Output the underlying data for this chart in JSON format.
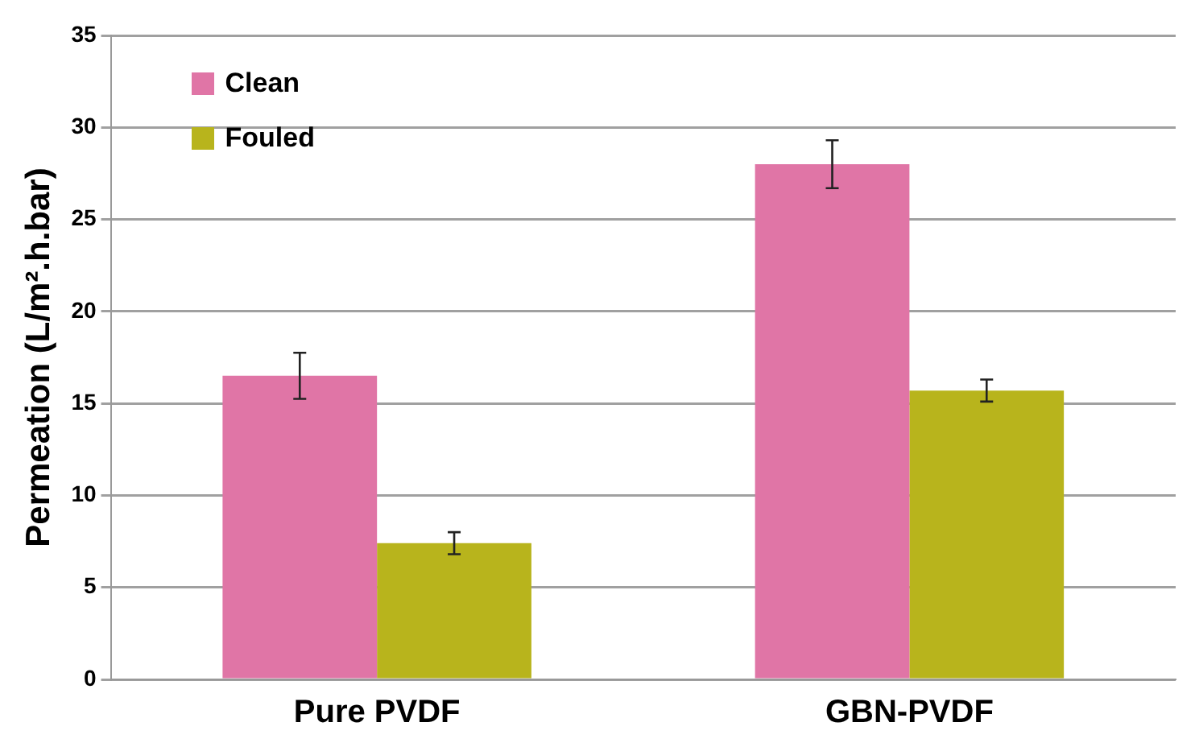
{
  "chart_data": {
    "type": "bar",
    "ylabel": "Permeation (L/m².h.bar)",
    "categories": [
      "Pure PVDF",
      "GBN-PVDF"
    ],
    "series": [
      {
        "name": "Clean",
        "color": "#e075a6",
        "values": [
          16.5,
          28.0
        ],
        "errors": [
          1.25,
          1.3
        ]
      },
      {
        "name": "Fouled",
        "color": "#b8b41c",
        "values": [
          7.4,
          15.7
        ],
        "errors": [
          0.6,
          0.6
        ]
      }
    ],
    "ylim": [
      0,
      35
    ],
    "yticks": [
      0,
      5,
      10,
      15,
      20,
      25,
      30,
      35
    ],
    "grid": "y",
    "legend": "top left"
  }
}
